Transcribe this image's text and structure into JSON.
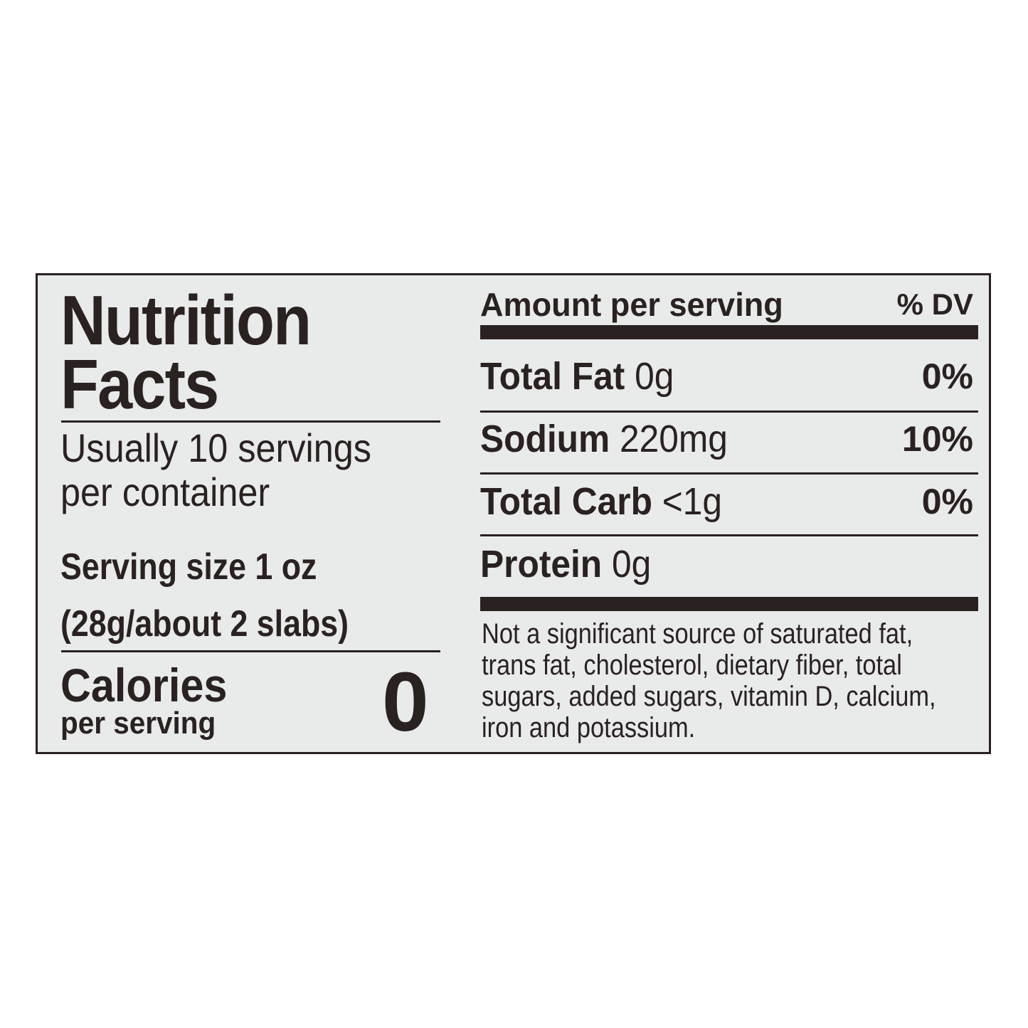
{
  "title": "Nutrition Facts",
  "title_line1": "Nutrition",
  "title_line2": "Facts",
  "servings_line1": "Usually 10 servings",
  "servings_line2": "per container",
  "serving_size_line1": "Serving size 1 oz",
  "serving_size_line2": "(28g/about 2 slabs)",
  "calories_label": "Calories",
  "calories_sublabel": "per serving",
  "calories_value": "0",
  "header": {
    "amount": "Amount per serving",
    "dv": "% DV"
  },
  "nutrients": [
    {
      "name": "Total Fat",
      "amount": "0g",
      "dv": "0%"
    },
    {
      "name": "Sodium",
      "amount": "220mg",
      "dv": "10%"
    },
    {
      "name": "Total Carb",
      "amount": "<1g",
      "dv": "0%"
    },
    {
      "name": "Protein",
      "amount": "0g",
      "dv": ""
    }
  ],
  "footnote_lines": [
    "Not a significant source of saturated fat,",
    "trans fat, cholesterol, dietary fiber, total",
    "sugars, added sugars, vitamin D, calcium,",
    "iron and potassium."
  ],
  "colors": {
    "ink": "#2a2121",
    "panel": "#e9ebeb"
  }
}
